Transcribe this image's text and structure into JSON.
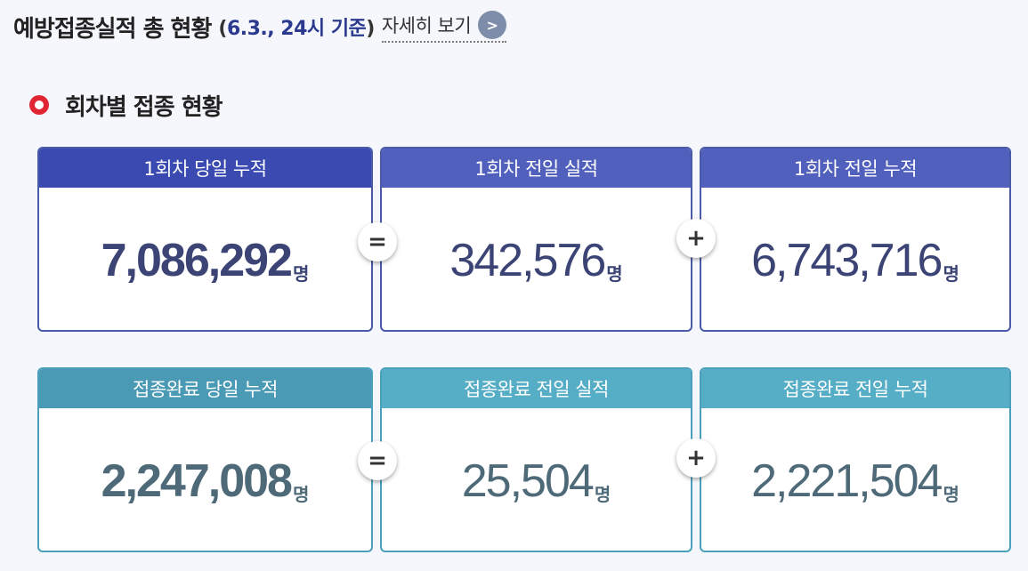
{
  "header": {
    "title": "예방접종실적 총 현황",
    "date_open": "(",
    "date_text": "6.3., 24시 기준",
    "date_close": ")",
    "more_label": "자세히 보기",
    "more_btn": ">"
  },
  "section": {
    "title": "회차별 접종 현황"
  },
  "operators": {
    "equals": "=",
    "plus": "+"
  },
  "unit": "명",
  "row1": {
    "cards": [
      {
        "title": "1회차 당일 누적",
        "value": "7,086,292"
      },
      {
        "title": "1회차 전일 실적",
        "value": "342,576"
      },
      {
        "title": "1회차 전일 누적",
        "value": "6,743,716"
      }
    ]
  },
  "row2": {
    "cards": [
      {
        "title": "접종완료 당일 누적",
        "value": "2,247,008"
      },
      {
        "title": "접종완료 전일 실적",
        "value": "25,504"
      },
      {
        "title": "접종완료 전일 누적",
        "value": "2,221,504"
      }
    ]
  },
  "colors": {
    "row1_head_primary": "#3a4ab0",
    "row1_head": "#5260bd",
    "row2_head_primary": "#4a9ab5",
    "row2_head": "#56adc6",
    "section_dot": "#e02632",
    "date_accent": "#2b3a8f"
  }
}
